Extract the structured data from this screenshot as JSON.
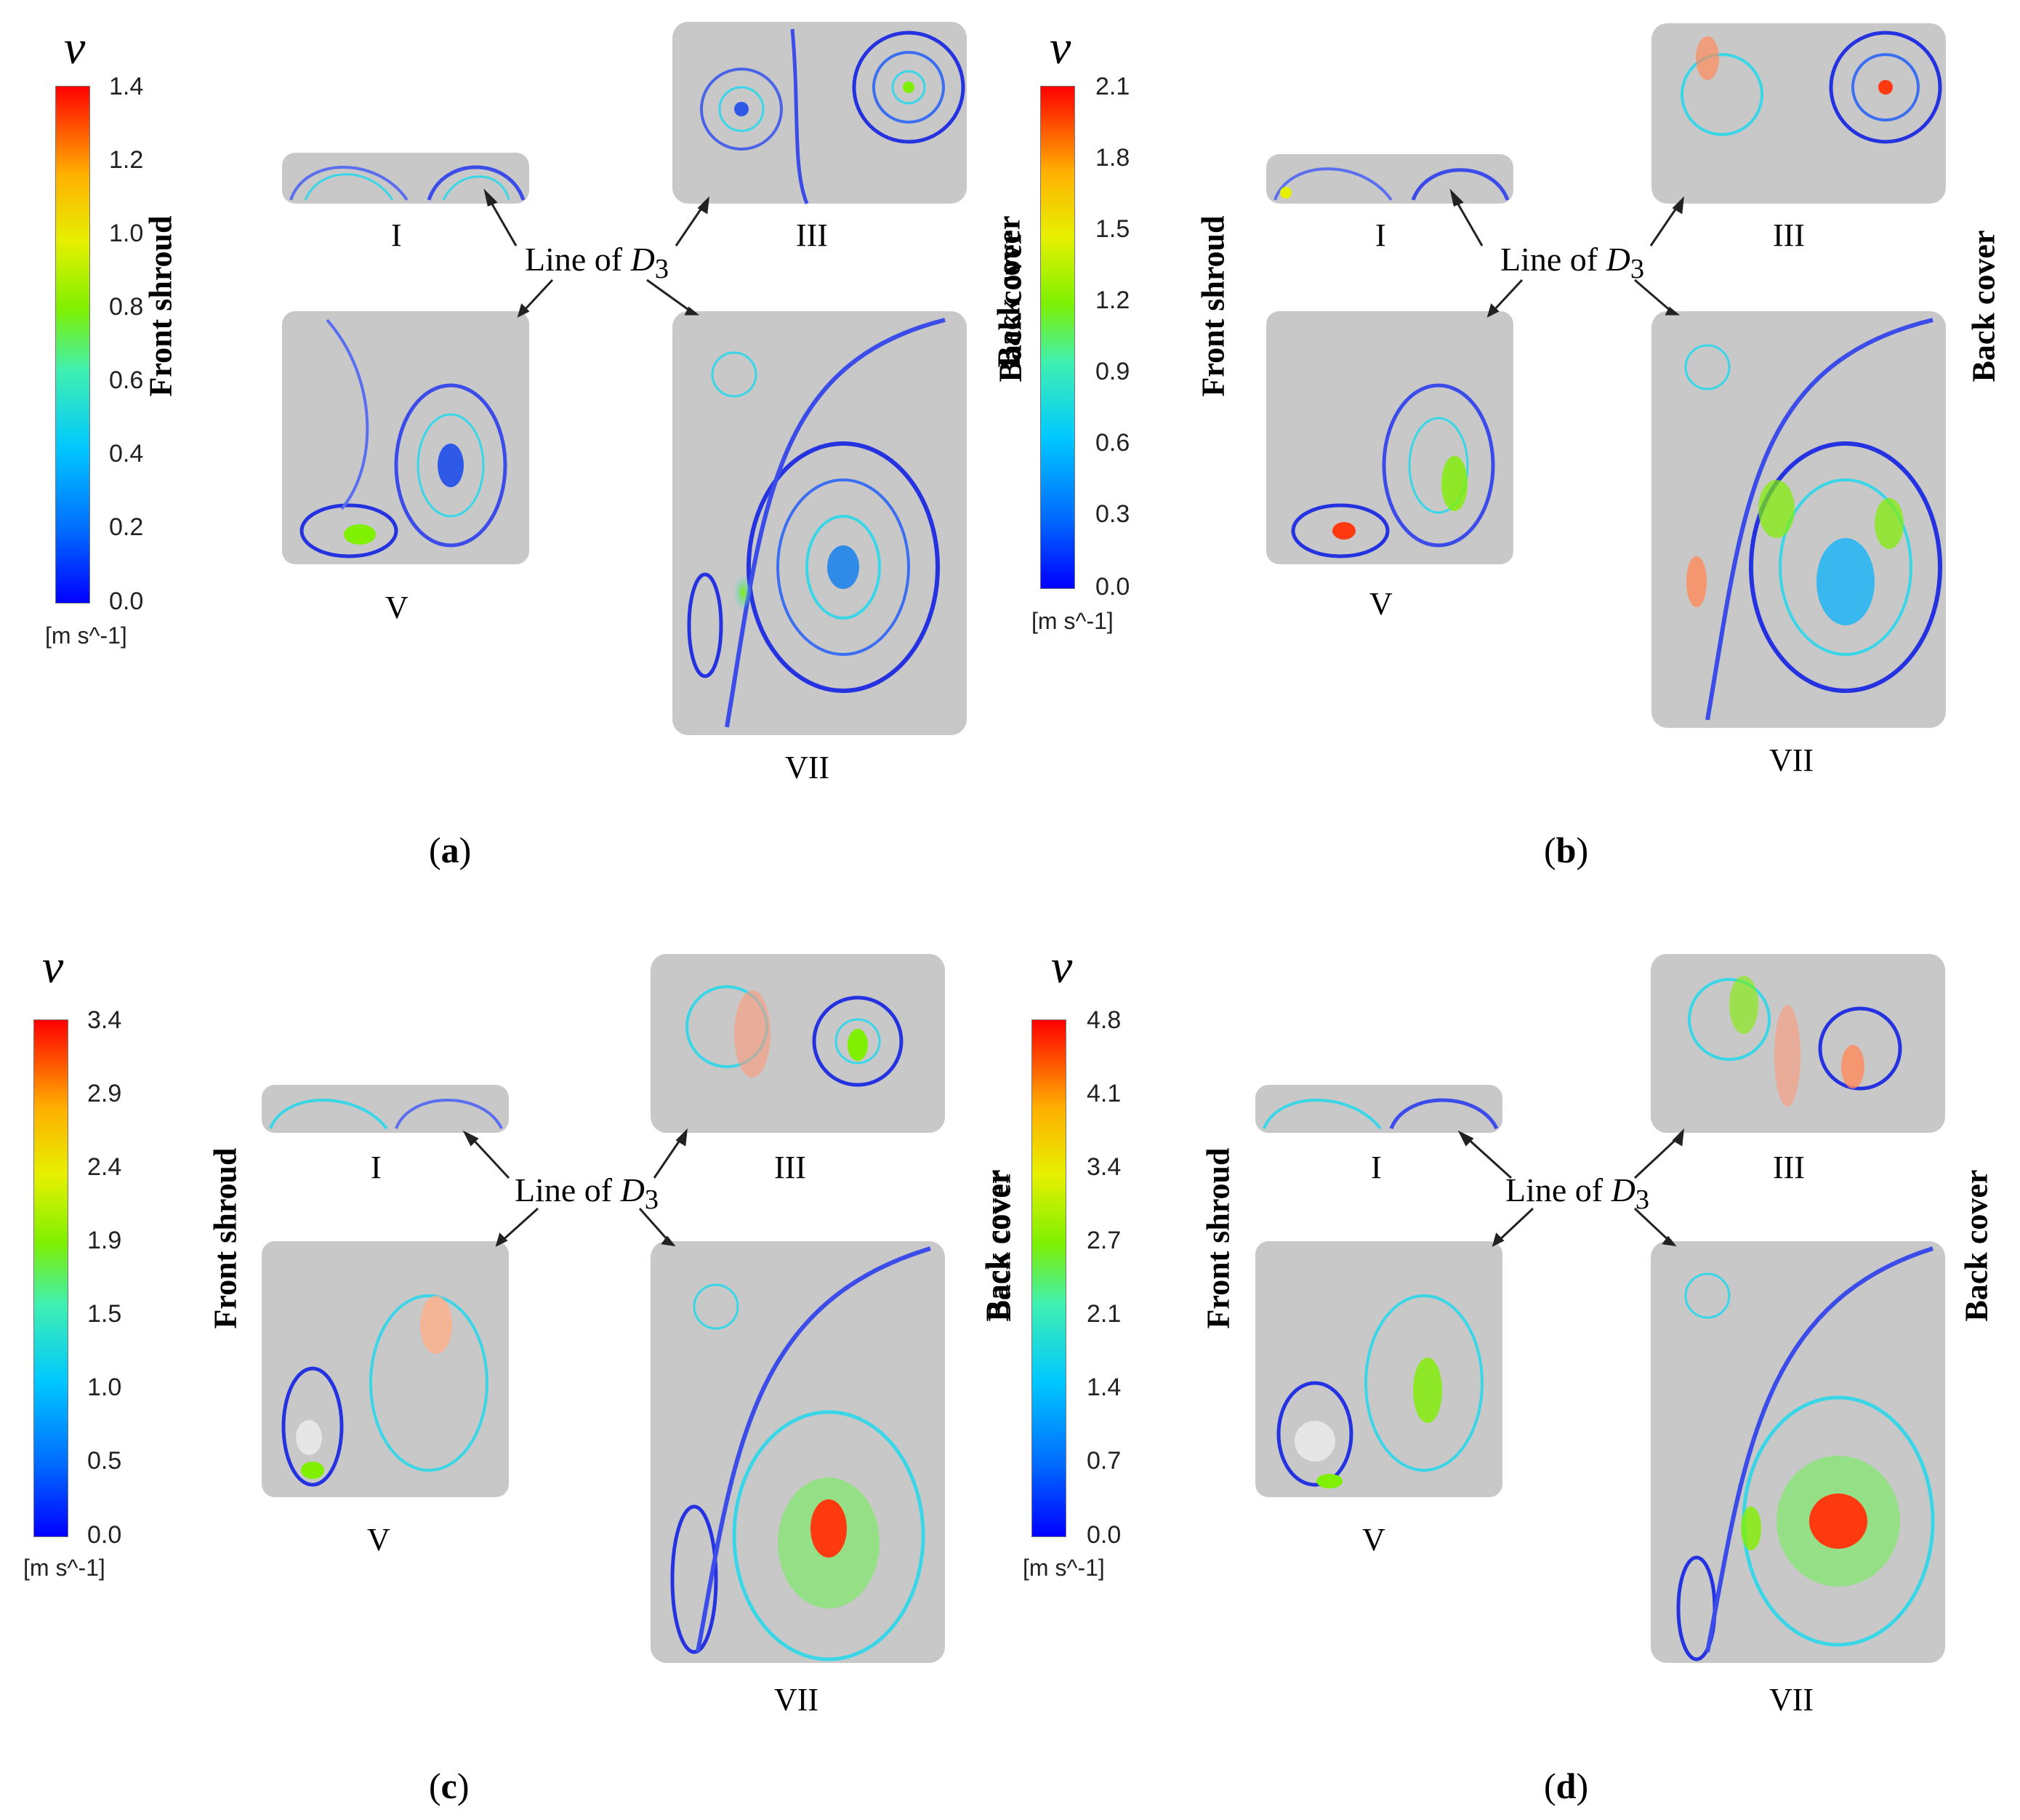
{
  "variable_symbol": "v",
  "unit_label": "[m s^-1]",
  "labels": {
    "front_shroud": "Front shroud",
    "back_cover": "Back cover",
    "line_of": "Line of ",
    "d_symbol": "D",
    "d_subscript": "3",
    "region_I": "I",
    "region_III": "III",
    "region_V": "V",
    "region_VII": "VII"
  },
  "panels": [
    {
      "caption": "a",
      "ticks": [
        "1.4",
        "1.2",
        "1.0",
        "0.8",
        "0.6",
        "0.4",
        "0.2",
        "0.0"
      ]
    },
    {
      "caption": "b",
      "ticks": [
        "2.1",
        "1.8",
        "1.5",
        "1.2",
        "0.9",
        "0.6",
        "0.3",
        "0.0"
      ]
    },
    {
      "caption": "c",
      "ticks": [
        "3.4",
        "2.9",
        "2.4",
        "1.9",
        "1.5",
        "1.0",
        "0.5",
        "0.0"
      ]
    },
    {
      "caption": "d",
      "ticks": [
        "4.8",
        "4.1",
        "3.4",
        "2.7",
        "2.1",
        "1.4",
        "0.7",
        "0.0"
      ]
    }
  ],
  "colors": {
    "cavity": "#c8c8c8",
    "low_speed": "#1e2ef0",
    "mid_speed": "#39d6e8",
    "high_speed": "#ff3a10"
  }
}
